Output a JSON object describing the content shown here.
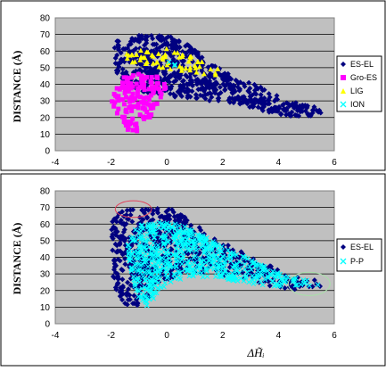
{
  "chart_data": [
    {
      "type": "scatter",
      "ylabel": "DISTANCE  (Å)",
      "xlim": [
        -4,
        6
      ],
      "ylim": [
        0,
        80
      ],
      "xticks": [
        "-4",
        "-2",
        "0",
        "2",
        "4",
        "6"
      ],
      "yticks": [
        "0",
        "10",
        "20",
        "30",
        "40",
        "50",
        "60",
        "70",
        "80"
      ],
      "grid": true,
      "legend_position": "right",
      "series": [
        {
          "name": "ES-EL",
          "marker": "diamond",
          "color": "#000080"
        },
        {
          "name": "Gro-ES",
          "marker": "square",
          "color": "#ff00ff"
        },
        {
          "name": "LIG",
          "marker": "triangle",
          "color": "#ffff00"
        },
        {
          "name": "ION",
          "marker": "x",
          "color": "#00ffff"
        }
      ],
      "clusters": {
        "ES-EL": {
          "polygon": [
            [
              -1.9,
              67
            ],
            [
              -0.8,
              70
            ],
            [
              0.2,
              69
            ],
            [
              0.8,
              64
            ],
            [
              1.6,
              52
            ],
            [
              2.6,
              44
            ],
            [
              3.4,
              38
            ],
            [
              4.4,
              30
            ],
            [
              5.4,
              26
            ],
            [
              5.6,
              22
            ],
            [
              4.8,
              20
            ],
            [
              3.6,
              23
            ],
            [
              2.6,
              28
            ],
            [
              1.6,
              30
            ],
            [
              0.6,
              32
            ],
            [
              -0.4,
              33
            ],
            [
              -1.3,
              37
            ],
            [
              -1.8,
              47
            ],
            [
              -2.0,
              58
            ]
          ],
          "count": 700
        },
        "Gro-ES": {
          "polygon": [
            [
              -2.0,
              34
            ],
            [
              -1.6,
              44
            ],
            [
              -1.0,
              47
            ],
            [
              -0.4,
              45
            ],
            [
              0.0,
              40
            ],
            [
              -0.2,
              30
            ],
            [
              -0.5,
              22
            ],
            [
              -0.8,
              12
            ],
            [
              -1.3,
              10
            ],
            [
              -1.6,
              18
            ],
            [
              -2.0,
              26
            ]
          ],
          "count": 140
        },
        "LIG": {
          "polygon": [
            [
              -1.6,
              58
            ],
            [
              -0.6,
              63
            ],
            [
              0.4,
              61
            ],
            [
              1.2,
              54
            ],
            [
              2.2,
              47
            ],
            [
              2.4,
              44
            ],
            [
              1.6,
              45
            ],
            [
              0.6,
              47
            ],
            [
              -0.4,
              50
            ],
            [
              -1.2,
              52
            ]
          ],
          "count": 60
        },
        "ION": {
          "polygon": [
            [
              -0.2,
              54
            ],
            [
              0.4,
              53
            ],
            [
              0.3,
              50
            ],
            [
              -0.3,
              51
            ]
          ],
          "count": 3
        }
      }
    },
    {
      "type": "scatter",
      "xlabel": "ΔH̃ᵢ",
      "ylabel": "DISTANCE  (Å)",
      "xlim": [
        -4,
        6
      ],
      "ylim": [
        0,
        80
      ],
      "xticks": [
        "-4",
        "-2",
        "0",
        "2",
        "4",
        "6"
      ],
      "yticks": [
        "0",
        "10",
        "20",
        "30",
        "40",
        "50",
        "60",
        "70",
        "80"
      ],
      "grid": true,
      "legend_position": "right",
      "series": [
        {
          "name": "ES-EL",
          "marker": "diamond",
          "color": "#000080"
        },
        {
          "name": "P-P",
          "marker": "x",
          "color": "#00ffff"
        }
      ],
      "annotations": [
        {
          "shape": "ellipse",
          "color": "#e0405a",
          "center": [
            -1.2,
            69
          ],
          "radii": [
            0.65,
            5
          ]
        },
        {
          "shape": "ellipse",
          "color": "#a8e0a8",
          "center": [
            5.1,
            24
          ],
          "radii": [
            0.75,
            7
          ]
        }
      ],
      "clusters": {
        "ES-EL": {
          "polygon": [
            [
              -1.9,
              67
            ],
            [
              -0.8,
              70
            ],
            [
              0.2,
              69
            ],
            [
              0.8,
              64
            ],
            [
              1.6,
              52
            ],
            [
              2.6,
              44
            ],
            [
              3.4,
              38
            ],
            [
              4.4,
              30
            ],
            [
              5.4,
              26
            ],
            [
              5.6,
              22
            ],
            [
              4.8,
              20
            ],
            [
              3.6,
              23
            ],
            [
              2.6,
              28
            ],
            [
              1.6,
              30
            ],
            [
              0.6,
              30
            ],
            [
              -0.4,
              24
            ],
            [
              -0.6,
              16
            ],
            [
              -1.0,
              10
            ],
            [
              -1.6,
              12
            ],
            [
              -1.9,
              24
            ],
            [
              -2.0,
              40
            ],
            [
              -2.0,
              58
            ]
          ],
          "count": 650
        },
        "P-P": {
          "polygon": [
            [
              -1.2,
              58
            ],
            [
              -0.4,
              62
            ],
            [
              0.4,
              60
            ],
            [
              1.0,
              56
            ],
            [
              1.8,
              48
            ],
            [
              2.8,
              40
            ],
            [
              3.8,
              32
            ],
            [
              5.2,
              26
            ],
            [
              5.5,
              23
            ],
            [
              4.2,
              22
            ],
            [
              3.0,
              24
            ],
            [
              2.0,
              27
            ],
            [
              1.0,
              28
            ],
            [
              0.2,
              26
            ],
            [
              -0.3,
              18
            ],
            [
              -0.6,
              10
            ],
            [
              -0.9,
              12
            ],
            [
              -1.2,
              20
            ],
            [
              -1.4,
              36
            ],
            [
              -1.4,
              48
            ]
          ],
          "count": 620
        }
      }
    }
  ]
}
